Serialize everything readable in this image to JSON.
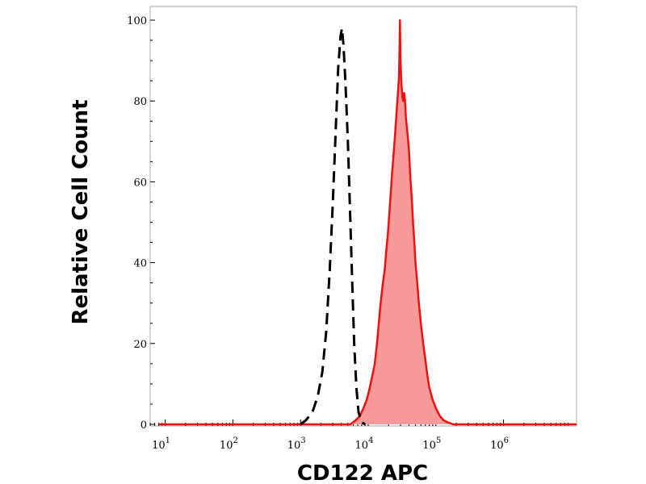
{
  "chart_data": {
    "type": "area",
    "xlabel": "CD122 APC",
    "ylabel": "Relative Cell Count",
    "xscale": "log",
    "xlim": [
      6,
      12000000
    ],
    "ylim": [
      0,
      100
    ],
    "x_tick_labels": [
      {
        "base": "10",
        "exp": "1",
        "value": 10
      },
      {
        "base": "10",
        "exp": "2",
        "value": 100
      },
      {
        "base": "10",
        "exp": "3",
        "value": 1000
      },
      {
        "base": "10",
        "exp": "4",
        "value": 10000
      },
      {
        "base": "10",
        "exp": "5",
        "value": 100000
      },
      {
        "base": "10",
        "exp": "6",
        "value": 1000000
      }
    ],
    "y_ticks": [
      0,
      20,
      40,
      60,
      80,
      100
    ],
    "y_tick_labels": [
      "0",
      "20",
      "40",
      "60",
      "80",
      "100"
    ],
    "series": [
      {
        "style": "filled-histogram",
        "color": "#ee1111",
        "fill": "#f99a9a",
        "points": [
          [
            8,
            0
          ],
          [
            5500,
            0
          ],
          [
            6500,
            1
          ],
          [
            7500,
            2
          ],
          [
            8500,
            4
          ],
          [
            9500,
            6
          ],
          [
            10500,
            9
          ],
          [
            11500,
            12
          ],
          [
            12500,
            15
          ],
          [
            13500,
            20
          ],
          [
            14500,
            26
          ],
          [
            15500,
            31
          ],
          [
            16500,
            35
          ],
          [
            17500,
            38
          ],
          [
            18500,
            43
          ],
          [
            19500,
            47
          ],
          [
            20500,
            52
          ],
          [
            21500,
            57
          ],
          [
            22500,
            62
          ],
          [
            23500,
            66
          ],
          [
            24500,
            70
          ],
          [
            25500,
            74
          ],
          [
            26500,
            78
          ],
          [
            27500,
            82
          ],
          [
            28500,
            86
          ],
          [
            29000,
            92
          ],
          [
            29500,
            100
          ],
          [
            30000,
            90
          ],
          [
            31000,
            84
          ],
          [
            32000,
            81
          ],
          [
            33000,
            80
          ],
          [
            34000,
            82
          ],
          [
            35000,
            80
          ],
          [
            36000,
            76
          ],
          [
            38000,
            72
          ],
          [
            40000,
            68
          ],
          [
            42000,
            61
          ],
          [
            44000,
            56
          ],
          [
            46000,
            50
          ],
          [
            48000,
            45
          ],
          [
            50000,
            40
          ],
          [
            53000,
            35
          ],
          [
            56000,
            30
          ],
          [
            60000,
            25
          ],
          [
            65000,
            20
          ],
          [
            70000,
            16
          ],
          [
            75000,
            12
          ],
          [
            80000,
            9
          ],
          [
            90000,
            6
          ],
          [
            100000,
            4
          ],
          [
            115000,
            2
          ],
          [
            130000,
            1
          ],
          [
            150000,
            0.5
          ],
          [
            180000,
            0
          ],
          [
            12000000,
            0
          ]
        ]
      },
      {
        "style": "dashed-line",
        "color": "#000000",
        "points": [
          [
            1000,
            0
          ],
          [
            1200,
            1
          ],
          [
            1500,
            3
          ],
          [
            1800,
            7
          ],
          [
            2100,
            13
          ],
          [
            2400,
            23
          ],
          [
            2700,
            38
          ],
          [
            3000,
            55
          ],
          [
            3300,
            72
          ],
          [
            3600,
            88
          ],
          [
            3900,
            96
          ],
          [
            4100,
            98
          ],
          [
            4300,
            94
          ],
          [
            4600,
            85
          ],
          [
            5000,
            70
          ],
          [
            5400,
            52
          ],
          [
            5800,
            35
          ],
          [
            6200,
            20
          ],
          [
            6700,
            9
          ],
          [
            7200,
            3
          ],
          [
            8000,
            0.5
          ],
          [
            9000,
            0
          ]
        ]
      }
    ]
  }
}
